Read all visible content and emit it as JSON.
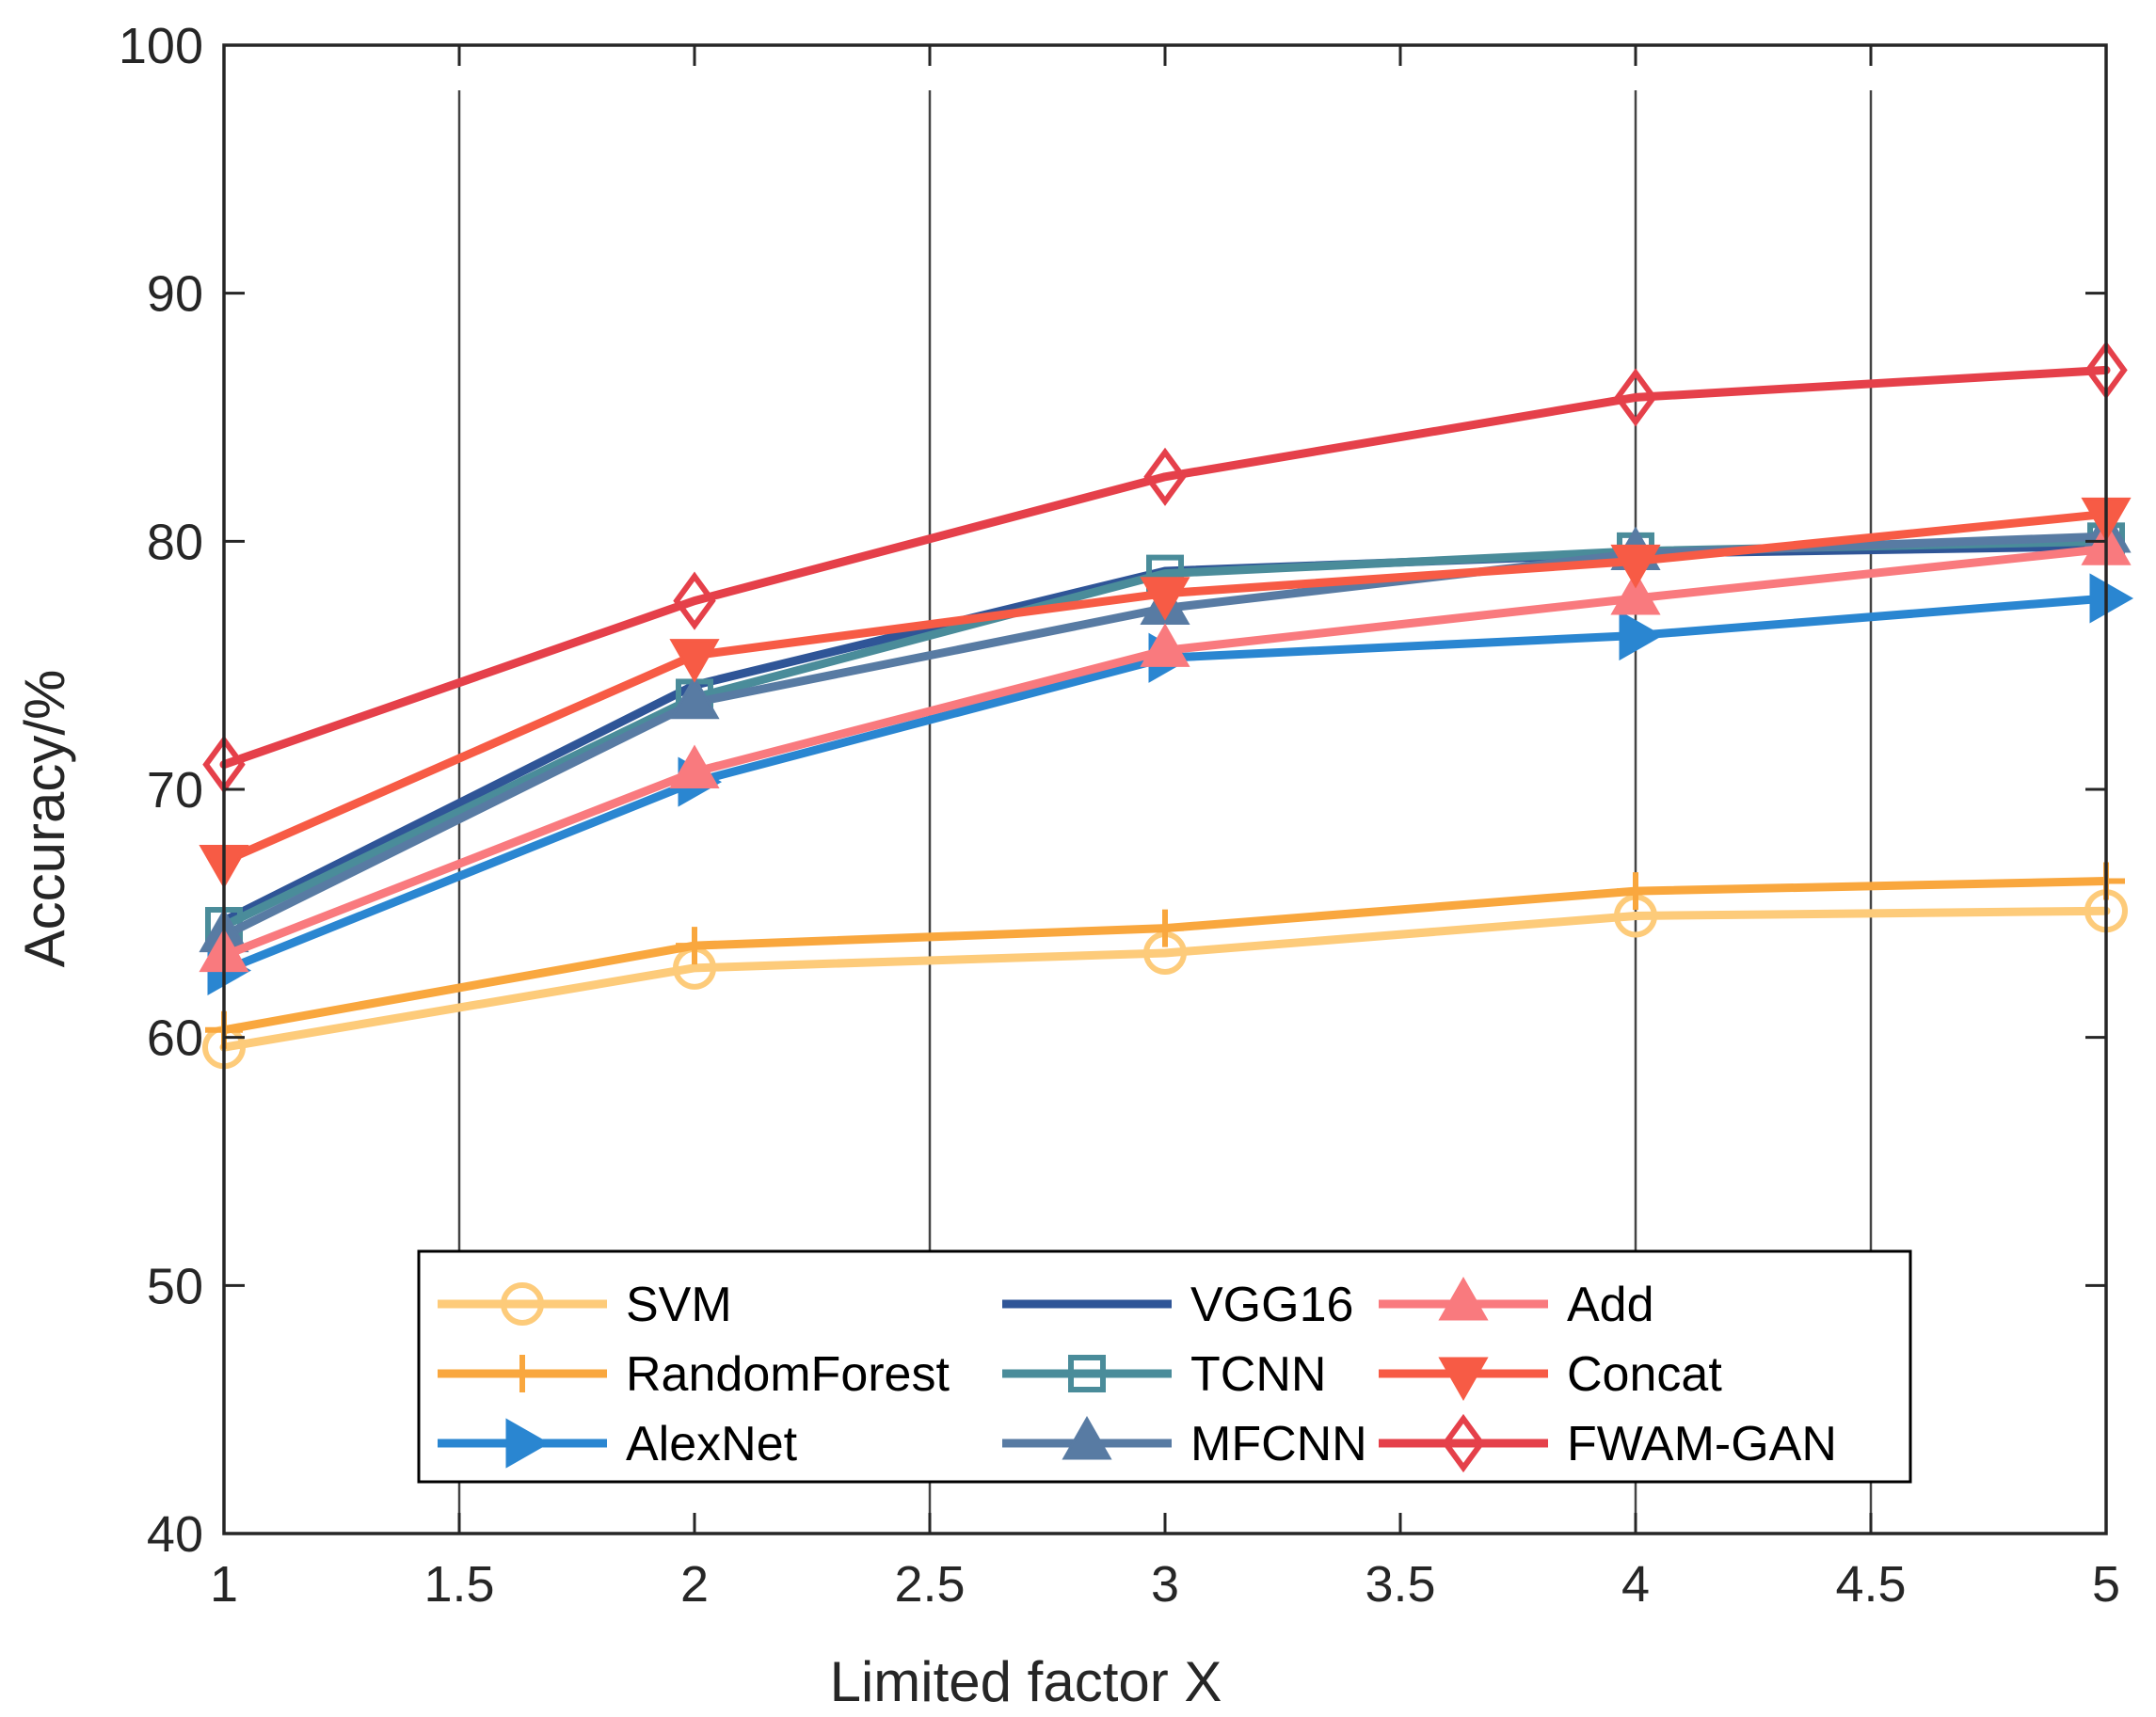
{
  "chart_data": {
    "type": "line",
    "title": "",
    "xlabel": "Limited factor X",
    "ylabel": "Accuracy/%",
    "xlim": [
      1,
      5
    ],
    "ylim": [
      40,
      100
    ],
    "xticks": [
      1,
      1.5,
      2,
      2.5,
      3,
      3.5,
      4,
      4.5,
      5
    ],
    "xtick_labels": [
      "1",
      "1.5",
      "2",
      "2.5",
      "3",
      "3.5",
      "4",
      "4.5",
      "5"
    ],
    "yticks": [
      40,
      50,
      60,
      70,
      80,
      90,
      100
    ],
    "ytick_labels": [
      "40",
      "50",
      "60",
      "70",
      "80",
      "90",
      "100"
    ],
    "grid_x": [
      1.5,
      2.5,
      4,
      4.5
    ],
    "legend_position": "bottom-center",
    "x": [
      1,
      2,
      3,
      4,
      5
    ],
    "series": [
      {
        "name": "SVM",
        "marker": "circle",
        "color": "#FDCB7A",
        "values": [
          59.6,
          62.8,
          63.4,
          64.9,
          65.1
        ]
      },
      {
        "name": "RandomForest",
        "marker": "plus",
        "color": "#F9A73E",
        "values": [
          60.3,
          63.7,
          64.4,
          65.9,
          66.3
        ]
      },
      {
        "name": "AlexNet",
        "marker": "triangle-right",
        "color": "#2A86D1",
        "values": [
          62.7,
          70.3,
          75.3,
          76.2,
          77.7
        ]
      },
      {
        "name": "VGG16",
        "marker": "none",
        "color": "#2F5597",
        "values": [
          64.7,
          74.2,
          78.8,
          79.5,
          79.8
        ]
      },
      {
        "name": "TCNN",
        "marker": "square",
        "color": "#4A8C9A",
        "values": [
          64.5,
          73.7,
          78.7,
          79.6,
          80.0
        ]
      },
      {
        "name": "MFCNN",
        "marker": "triangle-up",
        "color": "#587BA3",
        "values": [
          64.1,
          73.5,
          77.3,
          79.5,
          80.2
        ]
      },
      {
        "name": "Add",
        "marker": "triangle-up",
        "color": "#F97A7E",
        "values": [
          63.3,
          70.7,
          75.6,
          77.7,
          79.7
        ]
      },
      {
        "name": "Concat",
        "marker": "triangle-down",
        "color": "#F75B45",
        "values": [
          67.1,
          75.4,
          77.9,
          79.2,
          81.1
        ]
      },
      {
        "name": "FWAM-GAN",
        "marker": "diamond",
        "color": "#E5404A",
        "values": [
          71.0,
          77.6,
          82.6,
          85.8,
          86.9
        ]
      }
    ]
  }
}
